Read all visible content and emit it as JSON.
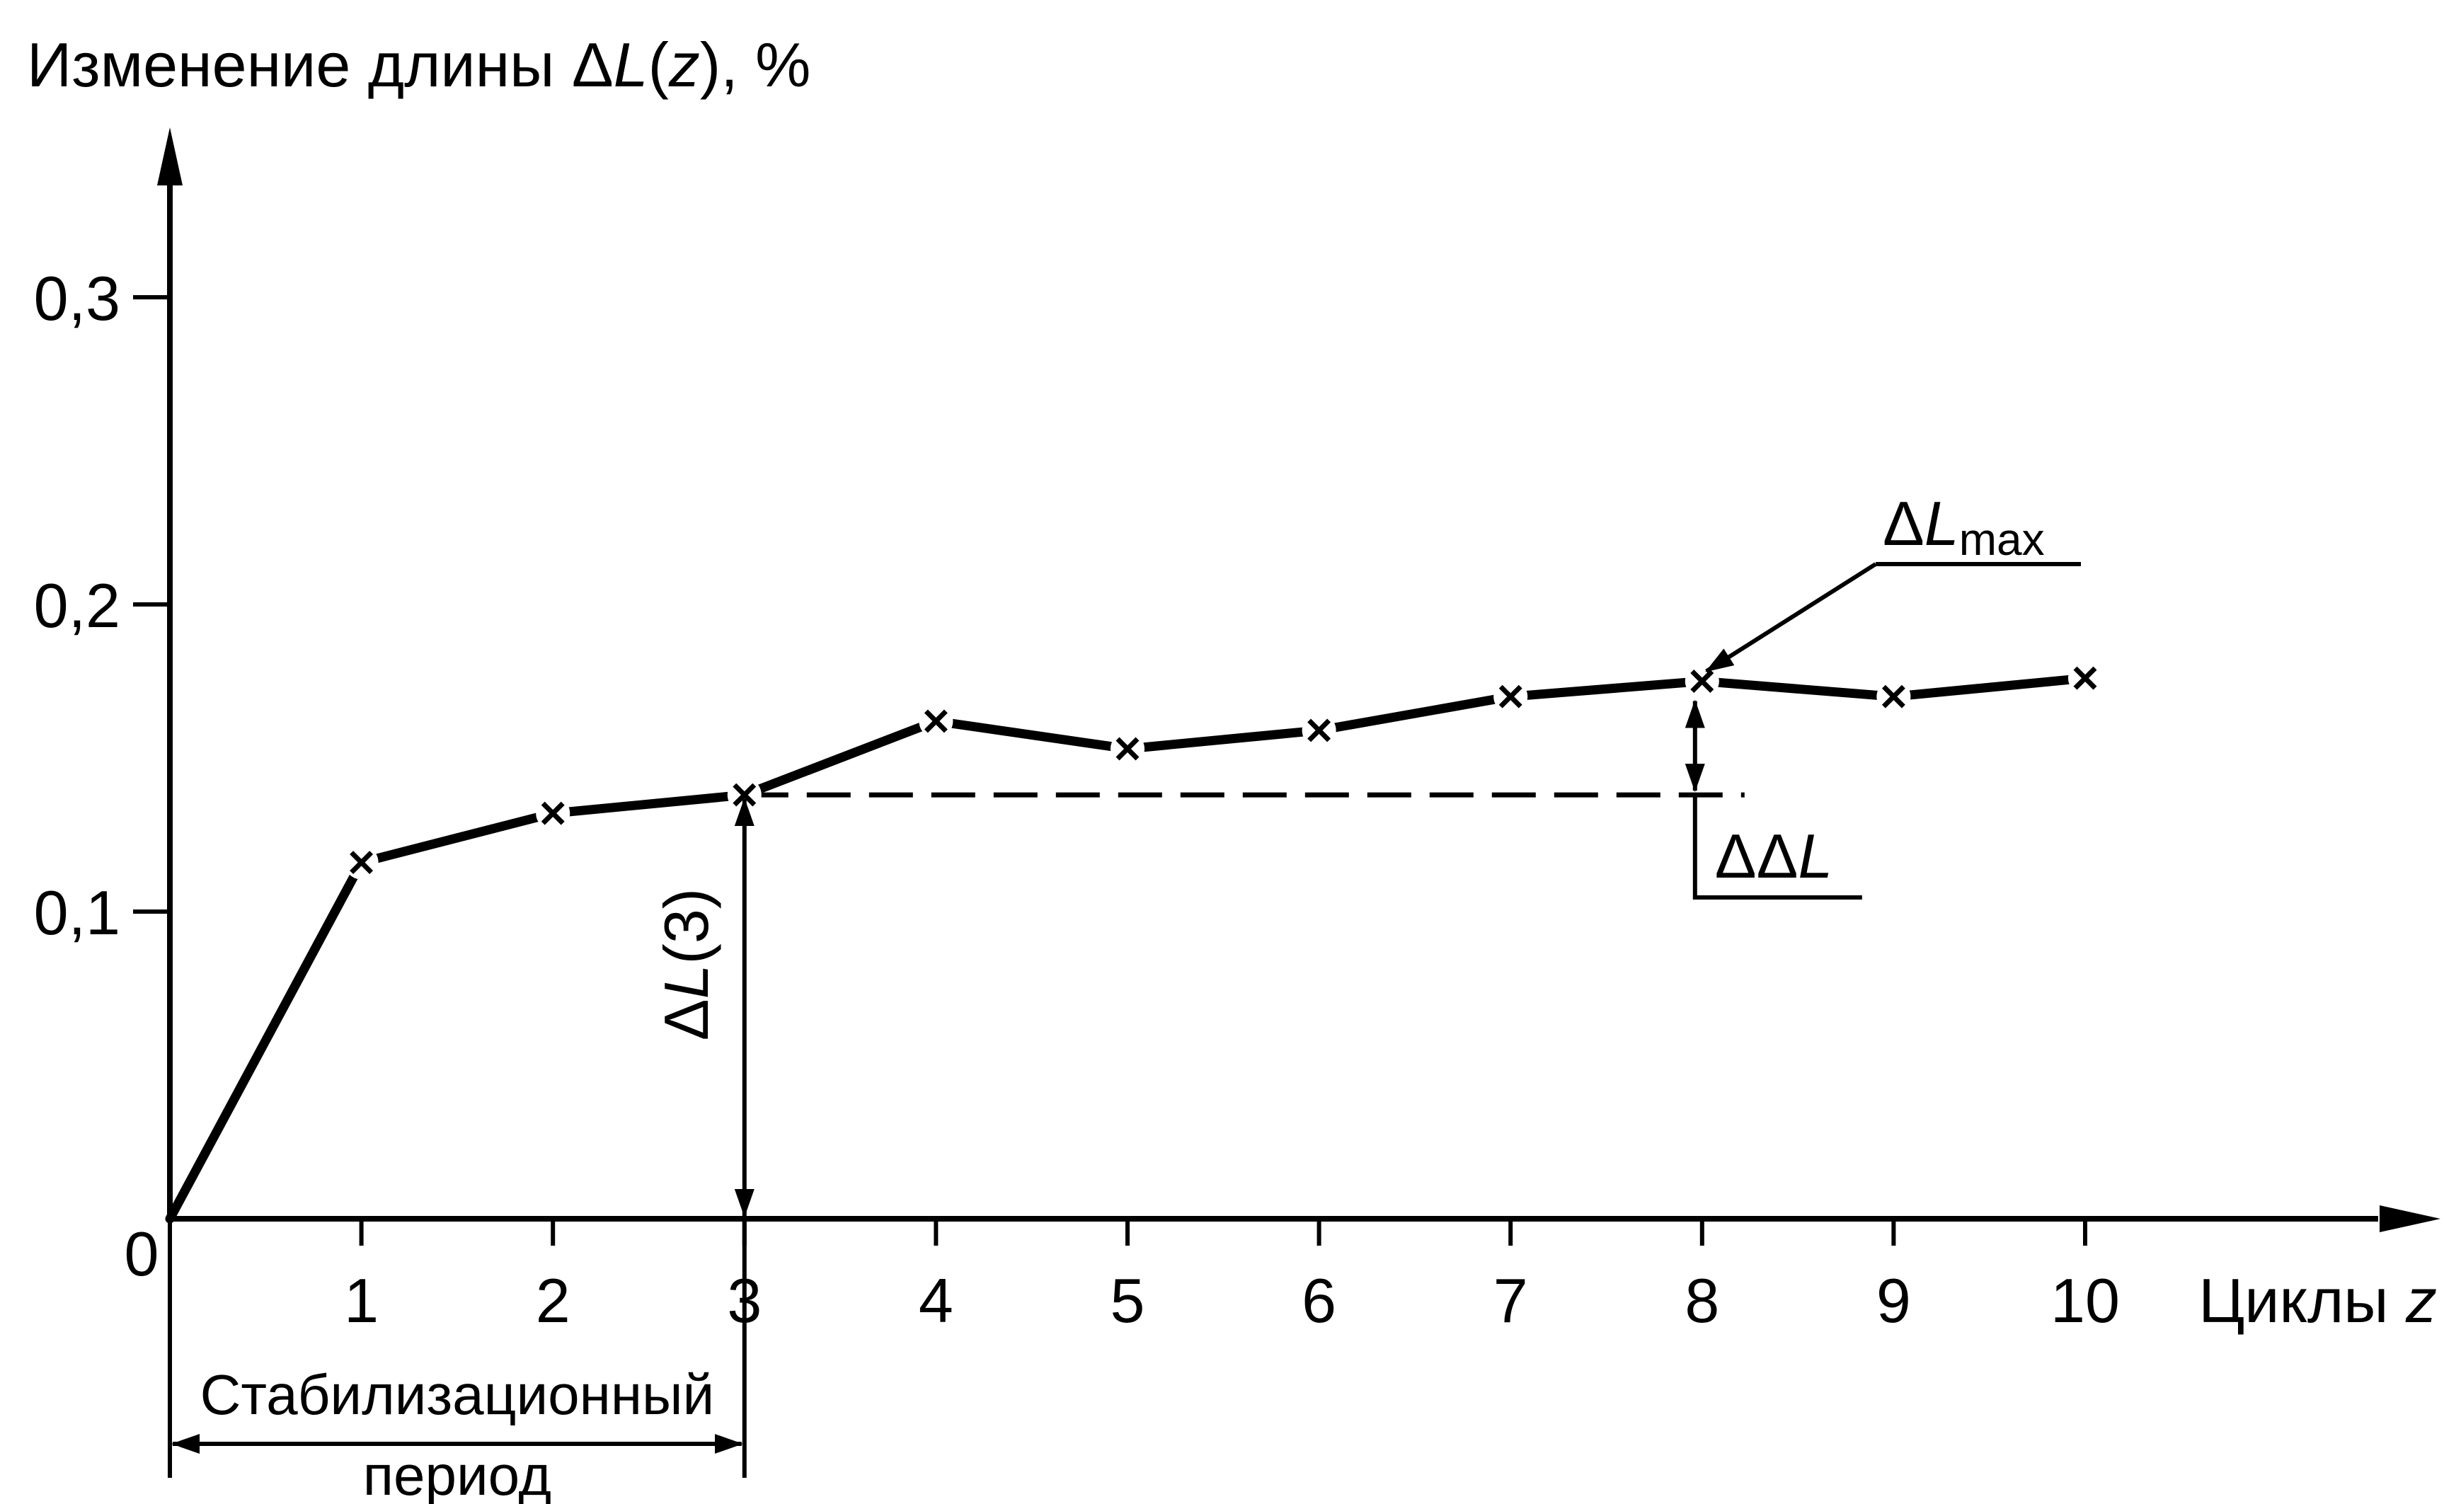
{
  "chart_data": {
    "type": "line",
    "title": "",
    "ylabel": {
      "prefix": "Изменение длины ",
      "delta": "Δ",
      "var": "L",
      "open": "(",
      "arg": "z",
      "close": "), %"
    },
    "xlabel": {
      "text": "Циклы ",
      "var": "z"
    },
    "origin_label": "0",
    "x_ticks": [
      "1",
      "2",
      "3",
      "4",
      "5",
      "6",
      "7",
      "8",
      "9",
      "10"
    ],
    "y_ticks": [
      "0,1",
      "0,2",
      "0,3"
    ],
    "xlim": [
      0,
      11.5
    ],
    "ylim": [
      0,
      0.37
    ],
    "grid": false,
    "series": [
      {
        "x": [
          0,
          1,
          2,
          3,
          4,
          5,
          6,
          7,
          8,
          9,
          10
        ],
        "y": [
          0,
          0.116,
          0.132,
          0.138,
          0.162,
          0.153,
          0.159,
          0.17,
          0.175,
          0.17,
          0.176
        ]
      }
    ],
    "annotations": {
      "reference_level": 0.138,
      "dl3": {
        "delta": "Δ",
        "var": "L",
        "rest": "(3)"
      },
      "ddl": {
        "delta": "ΔΔ",
        "var": "L"
      },
      "dlmax": {
        "delta": "Δ",
        "var": "L",
        "sub": "max"
      },
      "stab_period": {
        "line1": "Стабилизационный",
        "line2": "период"
      }
    }
  }
}
